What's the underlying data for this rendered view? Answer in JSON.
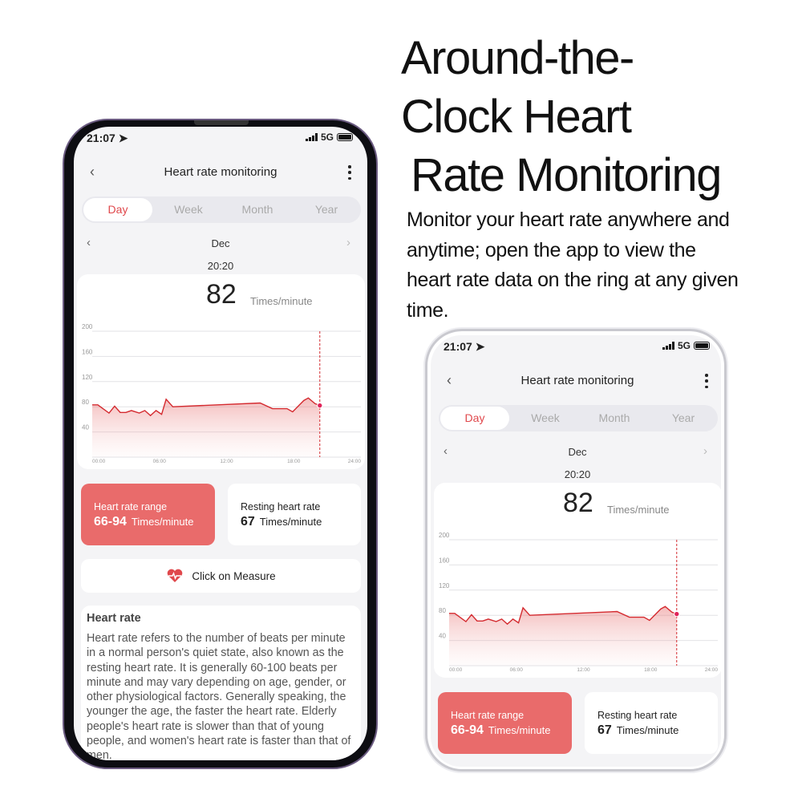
{
  "headline": {
    "lines": [
      "Around-the-",
      "Clock Heart",
      "Rate Monitoring"
    ]
  },
  "description": "Monitor your heart rate anywhere and anytime; open the app to view the heart rate data on the ring at any given time.",
  "app": {
    "status": {
      "time": "21:07",
      "network": "5G"
    },
    "header": {
      "title": "Heart rate monitoring"
    },
    "tabs": [
      {
        "label": "Day",
        "active": true
      },
      {
        "label": "Week"
      },
      {
        "label": "Month"
      },
      {
        "label": "Year"
      }
    ],
    "date": "Dec",
    "selected_time": "20:20",
    "current_value": "82",
    "unit": "Times/minute",
    "range_card": {
      "label": "Heart rate range",
      "value": "66-94",
      "unit": "Times/minute"
    },
    "resting_card": {
      "label": "Resting heart rate",
      "value": "67",
      "unit": "Times/minute"
    },
    "measure_button": "Click on Measure",
    "info": {
      "title": "Heart rate",
      "text": "Heart rate refers to the number of beats per minute in a normal person's quiet state, also known as the resting heart rate. It is generally 60-100 beats per minute and may vary depending on age, gender, or other physiological factors. Generally speaking, the younger the age, the faster the heart rate. Elderly people's heart rate is slower than that of young people, and women's heart rate is faster than that of men."
    },
    "colors": {
      "accent": "#e0484c",
      "range_card": "#e96b6b",
      "background": "#f4f4f6"
    }
  },
  "chart_data": {
    "type": "area",
    "xlim": [
      0,
      24
    ],
    "ylim": [
      0,
      200
    ],
    "x_ticks": [
      "00:00",
      "06:00",
      "12:00",
      "18:00",
      "24:00"
    ],
    "y_ticks": [
      "200",
      "160",
      "120",
      "80",
      "40"
    ],
    "grid": true,
    "x": [
      0,
      0.5,
      1.5,
      2,
      2.5,
      3,
      3.5,
      4.2,
      4.7,
      5.2,
      5.7,
      6.2,
      6.6,
      7.2,
      15,
      16.1,
      17.4,
      17.9,
      18.9,
      19.3,
      19.9,
      20.33
    ],
    "values": [
      83,
      83,
      70,
      81,
      71,
      71,
      74,
      70,
      74,
      66,
      74,
      68,
      92,
      80,
      86,
      77,
      77,
      72,
      90,
      94,
      85,
      82
    ],
    "marker_time": 20.33,
    "color": "#d42a2f"
  }
}
